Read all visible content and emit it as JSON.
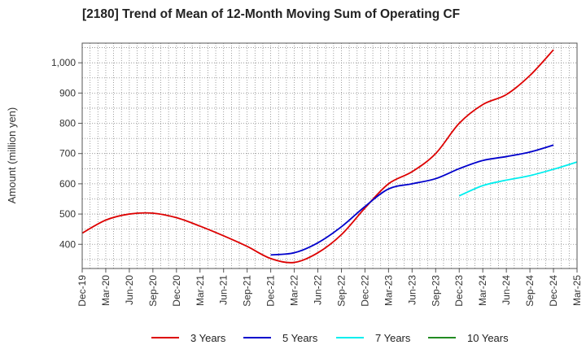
{
  "chart_data": {
    "type": "line",
    "title": "[2180]  Trend of Mean of 12-Month Moving Sum of Operating CF",
    "xlabel": "",
    "ylabel": "Amount (million yen)",
    "ylim": [
      320,
      1065
    ],
    "yticks": [
      400,
      500,
      600,
      700,
      800,
      900,
      1000
    ],
    "ytick_labels": [
      "400",
      "500",
      "600",
      "700",
      "800",
      "900",
      "1,000"
    ],
    "xticks": [
      "Dec-19",
      "Mar-20",
      "Jun-20",
      "Sep-20",
      "Dec-20",
      "Mar-21",
      "Jun-21",
      "Sep-21",
      "Dec-21",
      "Mar-22",
      "Jun-22",
      "Sep-22",
      "Dec-22",
      "Mar-23",
      "Jun-23",
      "Sep-23",
      "Dec-23",
      "Mar-24",
      "Jun-24",
      "Sep-24",
      "Dec-24",
      "Mar-25"
    ],
    "grid": true,
    "series": [
      {
        "name": "3 Years",
        "color": "#dd0000",
        "start_index": 0,
        "values": [
          437,
          480,
          500,
          503,
          488,
          460,
          428,
          393,
          353,
          340,
          372,
          432,
          520,
          600,
          640,
          700,
          800,
          862,
          895,
          958,
          1043
        ]
      },
      {
        "name": "5 Years",
        "color": "#0000cc",
        "start_index": 8,
        "values": [
          365,
          372,
          405,
          458,
          525,
          583,
          600,
          617,
          650,
          677,
          690,
          705,
          728
        ]
      },
      {
        "name": "7 Years",
        "color": "#00eeee",
        "start_index": 16,
        "values": [
          560,
          594,
          612,
          627,
          648,
          672
        ]
      },
      {
        "name": "10 Years",
        "color": "#228b22",
        "start_index": 0,
        "values": []
      }
    ]
  }
}
